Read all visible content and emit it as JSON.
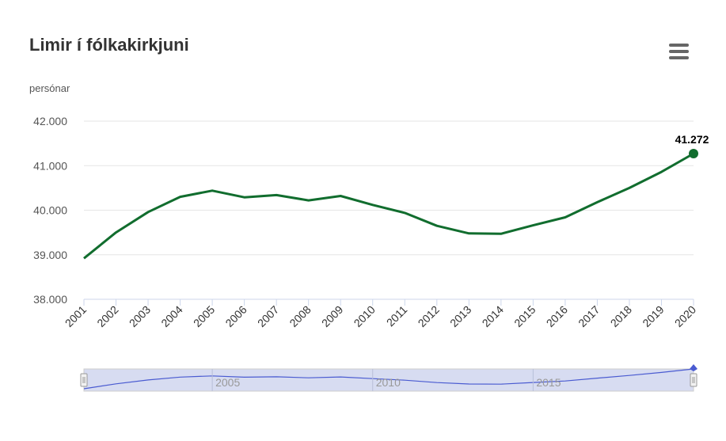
{
  "chart_data": {
    "type": "line",
    "title": "Limir í fólkakirkjuni",
    "ylabel": "persónar",
    "xlabel": "",
    "categories": [
      "2001",
      "2002",
      "2003",
      "2004",
      "2005",
      "2006",
      "2007",
      "2008",
      "2009",
      "2010",
      "2011",
      "2012",
      "2013",
      "2014",
      "2015",
      "2016",
      "2017",
      "2018",
      "2019",
      "2020"
    ],
    "series": [
      {
        "name": "",
        "values": [
          38920,
          39500,
          39960,
          40300,
          40440,
          40290,
          40340,
          40220,
          40320,
          40120,
          39940,
          39650,
          39480,
          39470,
          39660,
          39840,
          40180,
          40500,
          40860,
          41272
        ]
      }
    ],
    "ylim": [
      38000,
      42000
    ],
    "yticks": [
      38000,
      39000,
      40000,
      41000,
      42000
    ],
    "ytick_labels": [
      "38.000",
      "39.000",
      "40.000",
      "41.000",
      "42.000"
    ],
    "grid": true,
    "last_point_label": "41.272",
    "color": "#116d2e",
    "navigator": {
      "labels": [
        "2005",
        "2010",
        "2015"
      ],
      "label_years": [
        2005,
        2010,
        2015
      ],
      "fill_color": "#d7dcf1",
      "line_color": "#4a5bd1"
    }
  },
  "ui": {
    "menu_icon": "hamburger-menu-icon"
  }
}
